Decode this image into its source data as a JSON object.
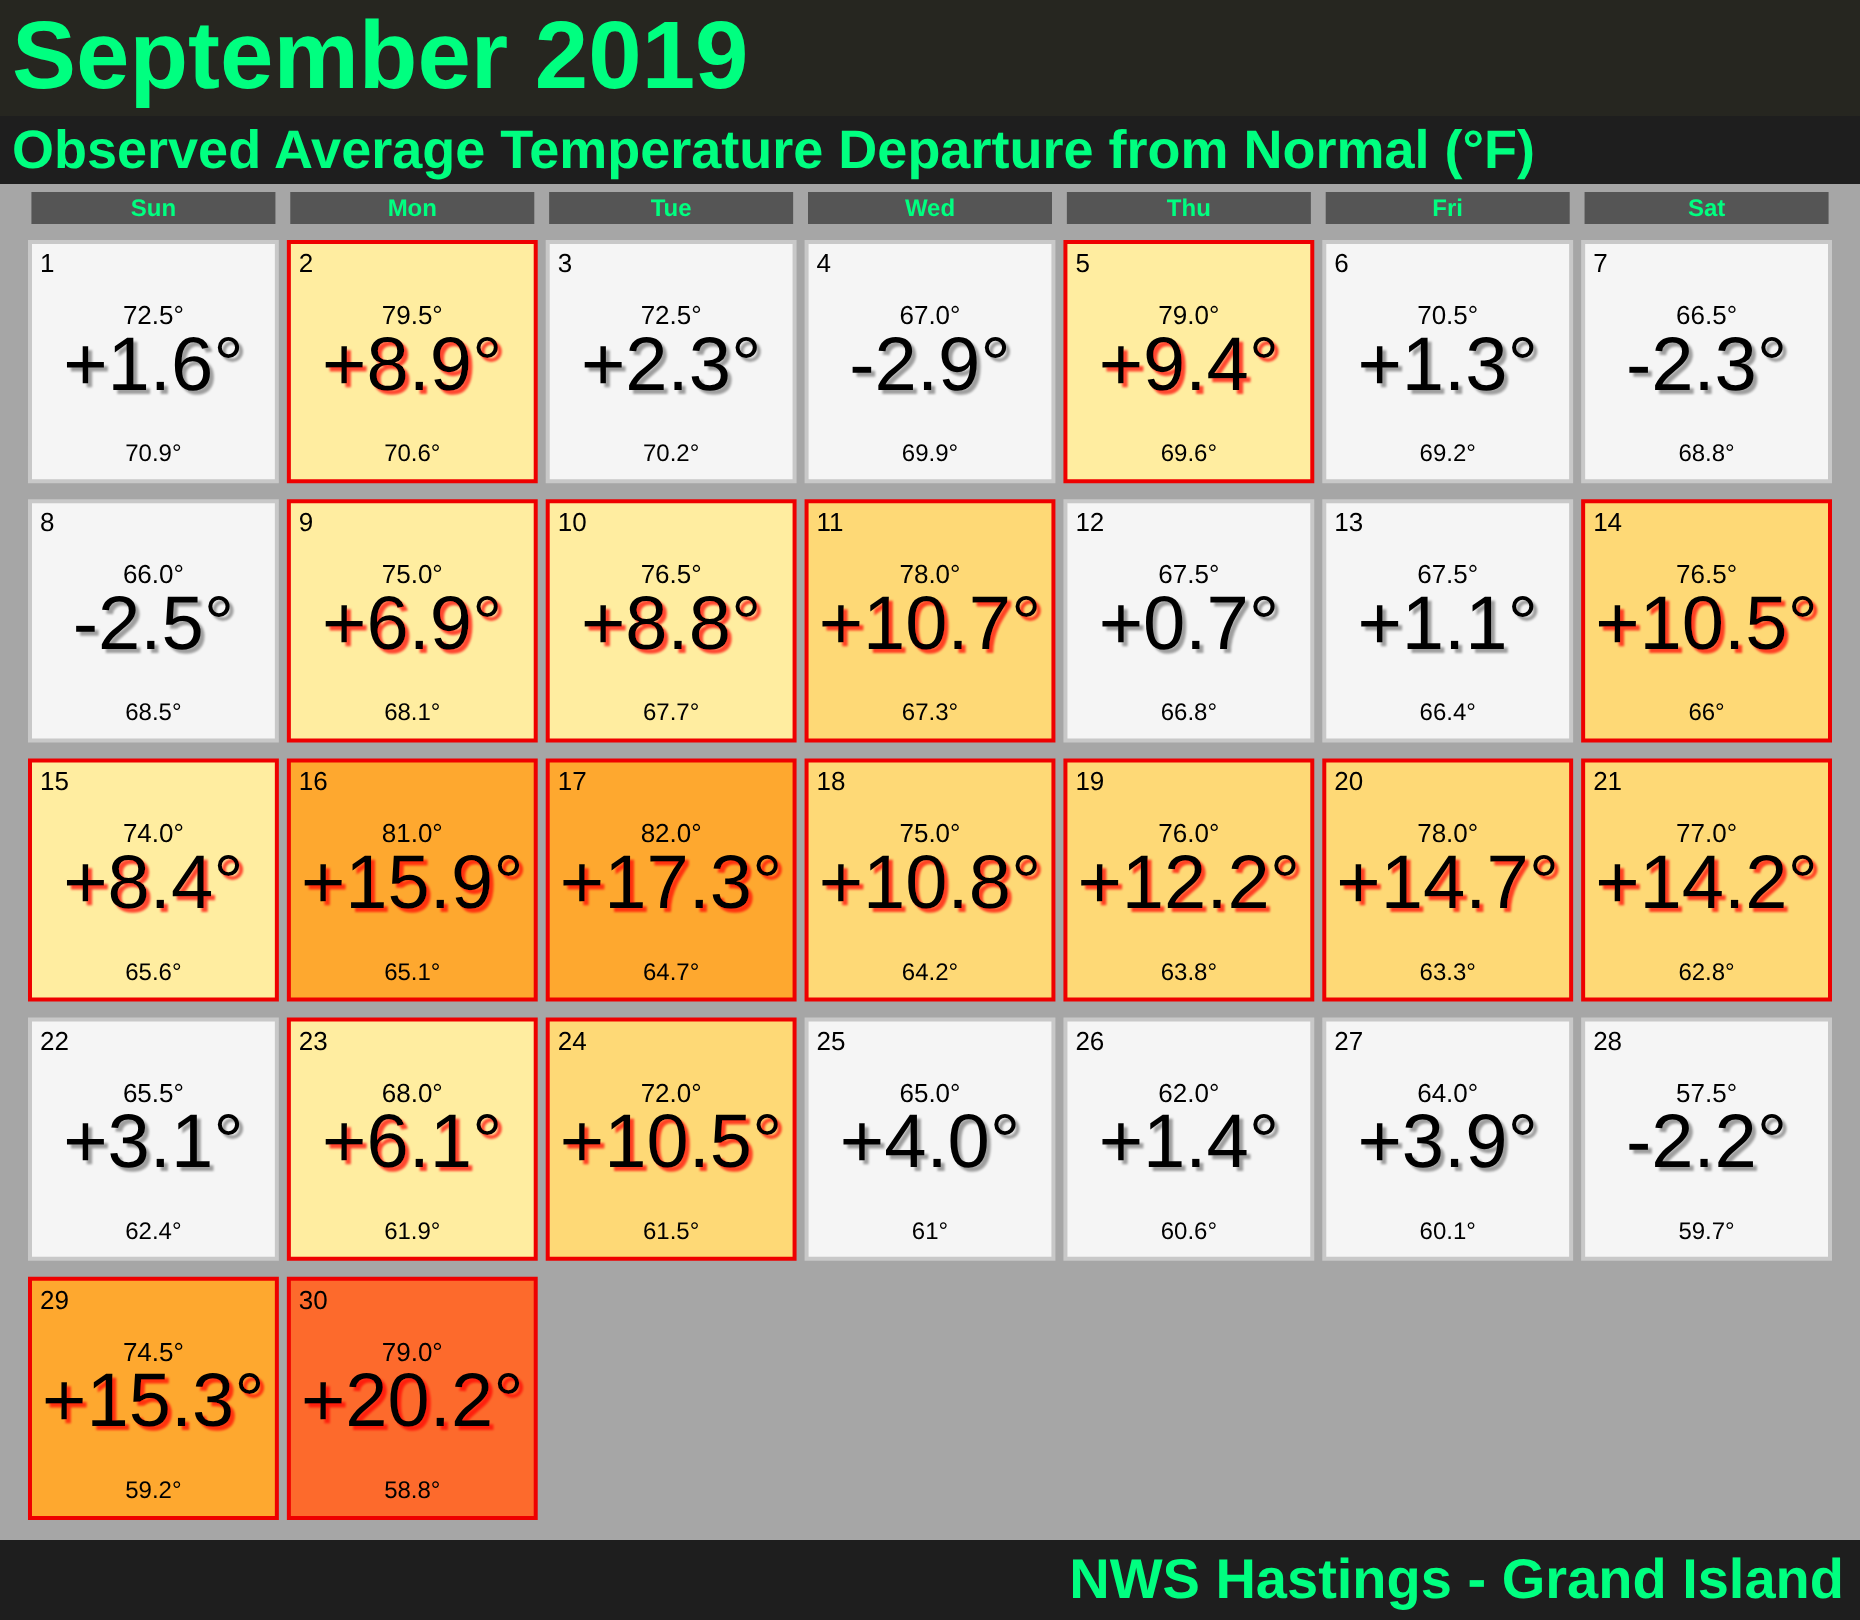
{
  "chart_data": {
    "type": "heatmap",
    "title": "September 2019",
    "subtitle": "Observed Average Temperature Departure from Normal (°F)",
    "annotations": [
      "NWS Hastings - Grand Island",
      "1\n72.5°\n70.9°",
      "2\n79.5°\n70.6°",
      "3\n72.5°\n70.2°",
      "4\n67.0°\n69.9°",
      "5\n79.0°\n69.6°",
      "6\n70.5°\n69.2°",
      "7\n66.5°\n68.8°",
      "8\n66.0°\n68.5°",
      "9\n75.0°\n68.1°",
      "10\n76.5°\n67.7°",
      "11\n78.0°\n67.3°",
      "12\n67.5°\n66.8°",
      "13\n67.5°\n66.4°",
      "14\n76.5°\n66°",
      "15\n74.0°\n65.6°",
      "16\n81.0°\n65.1°",
      "17\n82.0°\n64.7°",
      "18\n75.0°\n64.2°",
      "19\n76.0°\n63.8°",
      "20\n78.0°\n63.3°",
      "21\n77.0°\n62.8°",
      "22\n65.5°\n62.4°",
      "23\n68.0°\n61.9°",
      "24\n72.0°\n61.5°",
      "25\n65.0°\n61°",
      "26\n62.0°\n60.6°",
      "27\n64.0°\n60.1°",
      "28\n57.5°\n59.7°",
      "29\n74.5°\n59.2°",
      "30\n79.0°\n58.8°"
    ],
    "categories": [
      "Sun",
      "Mon",
      "Tue",
      "Wed",
      "Thu",
      "Fri",
      "Sat"
    ],
    "y_categories": [
      null,
      null,
      null,
      null,
      null
    ],
    "tick_labels": "x",
    "cells": [
      [
        1.6,
        8.9,
        2.3,
        -2.9,
        9.4,
        1.3,
        -2.3
      ],
      [
        -2.5,
        6.9,
        8.8,
        10.7,
        0.7,
        1.1,
        10.5
      ],
      [
        8.4,
        15.9,
        17.3,
        10.8,
        12.2,
        14.7,
        14.2
      ],
      [
        3.1,
        6.1,
        10.5,
        4.0,
        1.4,
        3.9,
        -2.2
      ],
      [
        15.3,
        20.2,
        null,
        null,
        null,
        null,
        null
      ]
    ],
    "cell_labels": [
      [
        "+1.6°",
        "+8.9°",
        "+2.3°",
        "-2.9°",
        "+9.4°",
        "+1.3°",
        "-2.3°"
      ],
      [
        "-2.5°",
        "+6.9°",
        "+8.8°",
        "+10.7°",
        "+0.7°",
        "+1.1°",
        "+10.5°"
      ],
      [
        "+8.4°",
        "+15.9°",
        "+17.3°",
        "+10.8°",
        "+12.2°",
        "+14.7°",
        "+14.2°"
      ],
      [
        "+3.1°",
        "+6.1°",
        "+10.5°",
        "+4.0°",
        "+1.4°",
        "+3.9°",
        "-2.2°"
      ],
      [
        "+15.3°",
        "+20.2°",
        null,
        null,
        null,
        null,
        null
      ]
    ],
    "colors": [
      [
        "#f5f5f5",
        "#ffeda0",
        "#f5f5f5",
        "#f5f5f5",
        "#ffeda0",
        "#f5f5f5",
        "#f5f5f5"
      ],
      [
        "#f5f5f5",
        "#ffeda0",
        "#ffeda0",
        "#fed976",
        "#f5f5f5",
        "#f5f5f5",
        "#fed976"
      ],
      [
        "#ffeda0",
        "#fea82f",
        "#fea82f",
        "#fed976",
        "#fed976",
        "#fed976",
        "#fed976"
      ],
      [
        "#f5f5f5",
        "#ffeda0",
        "#fed976",
        "#f5f5f5",
        "#f5f5f5",
        "#f5f5f5",
        "#f5f5f5"
      ],
      [
        "#fea82f",
        "#fd6a2c",
        null,
        null,
        null,
        null,
        null
      ]
    ]
  }
}
